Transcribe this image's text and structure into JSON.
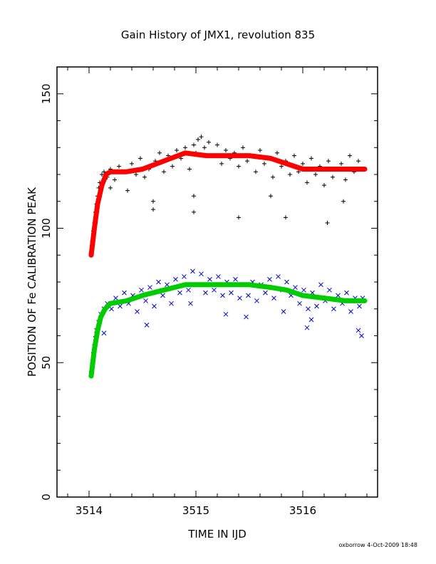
{
  "chart_data": {
    "type": "scatter",
    "title": "Gain History of JMX1, revolution 835",
    "xlabel": "TIME IN IJD",
    "ylabel": "POSITION OF Fe CALIBRATION PEAK",
    "xlim": [
      3513.7,
      3516.7
    ],
    "ylim": [
      0,
      160
    ],
    "x_ticks": [
      3514,
      3515,
      3516
    ],
    "x_tick_labels": [
      "3514",
      "3515",
      "3516"
    ],
    "y_ticks": [
      0,
      50,
      100,
      150
    ],
    "y_tick_labels": [
      "0",
      "50",
      "100",
      "150"
    ],
    "grid": false,
    "legend": "none",
    "series": [
      {
        "marker": "plus",
        "color": "#000000",
        "points": [
          [
            3514.02,
            91
          ],
          [
            3514.03,
            95
          ],
          [
            3514.04,
            99
          ],
          [
            3514.05,
            102
          ],
          [
            3514.06,
            106
          ],
          [
            3514.07,
            109
          ],
          [
            3514.08,
            112
          ],
          [
            3514.09,
            115
          ],
          [
            3514.1,
            117
          ],
          [
            3514.12,
            120
          ],
          [
            3514.14,
            121
          ],
          [
            3514.17,
            119
          ],
          [
            3514.2,
            122
          ],
          [
            3514.24,
            118
          ],
          [
            3514.28,
            123
          ],
          [
            3514.32,
            121
          ],
          [
            3514.36,
            114
          ],
          [
            3514.4,
            124
          ],
          [
            3514.44,
            120
          ],
          [
            3514.48,
            126
          ],
          [
            3514.52,
            119
          ],
          [
            3514.56,
            122
          ],
          [
            3514.6,
            110
          ],
          [
            3514.62,
            125
          ],
          [
            3514.66,
            128
          ],
          [
            3514.7,
            121
          ],
          [
            3514.74,
            127
          ],
          [
            3514.78,
            123
          ],
          [
            3514.82,
            129
          ],
          [
            3514.86,
            126
          ],
          [
            3514.9,
            130
          ],
          [
            3514.94,
            122
          ],
          [
            3514.98,
            131
          ],
          [
            3515.0,
            128
          ],
          [
            3515.02,
            133
          ],
          [
            3515.05,
            134
          ],
          [
            3515.08,
            130
          ],
          [
            3515.12,
            132
          ],
          [
            3515.16,
            127
          ],
          [
            3515.2,
            131
          ],
          [
            3515.24,
            124
          ],
          [
            3515.28,
            129
          ],
          [
            3515.32,
            126
          ],
          [
            3515.36,
            128
          ],
          [
            3515.4,
            123
          ],
          [
            3515.44,
            130
          ],
          [
            3515.48,
            125
          ],
          [
            3515.52,
            127
          ],
          [
            3515.56,
            121
          ],
          [
            3515.6,
            129
          ],
          [
            3515.64,
            124
          ],
          [
            3515.68,
            126
          ],
          [
            3515.72,
            119
          ],
          [
            3515.76,
            128
          ],
          [
            3515.8,
            123
          ],
          [
            3515.84,
            125
          ],
          [
            3515.88,
            120
          ],
          [
            3515.92,
            127
          ],
          [
            3515.96,
            121
          ],
          [
            3516.0,
            124
          ],
          [
            3516.04,
            117
          ],
          [
            3516.08,
            126
          ],
          [
            3516.12,
            120
          ],
          [
            3516.16,
            123
          ],
          [
            3516.2,
            116
          ],
          [
            3516.24,
            125
          ],
          [
            3516.28,
            119
          ],
          [
            3516.32,
            122
          ],
          [
            3516.36,
            124
          ],
          [
            3516.4,
            118
          ],
          [
            3516.44,
            127
          ],
          [
            3516.48,
            121
          ],
          [
            3516.52,
            125
          ],
          [
            3516.56,
            122
          ],
          [
            3514.6,
            107
          ],
          [
            3514.98,
            112
          ],
          [
            3514.98,
            106
          ],
          [
            3515.4,
            104
          ],
          [
            3515.84,
            104
          ],
          [
            3516.23,
            102
          ],
          [
            3516.38,
            110
          ],
          [
            3515.7,
            112
          ],
          [
            3514.2,
            115
          ]
        ]
      },
      {
        "marker": "cross",
        "color": "#0000cc",
        "points": [
          [
            3514.02,
            46
          ],
          [
            3514.03,
            49
          ],
          [
            3514.04,
            53
          ],
          [
            3514.05,
            56
          ],
          [
            3514.06,
            59
          ],
          [
            3514.07,
            62
          ],
          [
            3514.09,
            65
          ],
          [
            3514.11,
            68
          ],
          [
            3514.14,
            70
          ],
          [
            3514.17,
            72
          ],
          [
            3514.21,
            70
          ],
          [
            3514.25,
            74
          ],
          [
            3514.29,
            71
          ],
          [
            3514.33,
            76
          ],
          [
            3514.37,
            72
          ],
          [
            3514.41,
            75
          ],
          [
            3514.45,
            69
          ],
          [
            3514.49,
            77
          ],
          [
            3514.53,
            73
          ],
          [
            3514.57,
            78
          ],
          [
            3514.61,
            71
          ],
          [
            3514.65,
            80
          ],
          [
            3514.69,
            75
          ],
          [
            3514.73,
            79
          ],
          [
            3514.77,
            72
          ],
          [
            3514.81,
            81
          ],
          [
            3514.85,
            76
          ],
          [
            3514.89,
            82
          ],
          [
            3514.93,
            77
          ],
          [
            3514.97,
            84
          ],
          [
            3515.01,
            79
          ],
          [
            3515.05,
            83
          ],
          [
            3515.09,
            76
          ],
          [
            3515.13,
            81
          ],
          [
            3515.17,
            77
          ],
          [
            3515.21,
            82
          ],
          [
            3515.25,
            75
          ],
          [
            3515.29,
            80
          ],
          [
            3515.33,
            76
          ],
          [
            3515.37,
            81
          ],
          [
            3515.41,
            74
          ],
          [
            3515.45,
            79
          ],
          [
            3515.49,
            75
          ],
          [
            3515.53,
            80
          ],
          [
            3515.57,
            73
          ],
          [
            3515.61,
            79
          ],
          [
            3515.65,
            76
          ],
          [
            3515.69,
            81
          ],
          [
            3515.73,
            74
          ],
          [
            3515.77,
            82
          ],
          [
            3515.81,
            77
          ],
          [
            3515.85,
            80
          ],
          [
            3515.89,
            75
          ],
          [
            3515.93,
            78
          ],
          [
            3515.97,
            72
          ],
          [
            3516.01,
            77
          ],
          [
            3516.05,
            70
          ],
          [
            3516.09,
            76
          ],
          [
            3516.13,
            71
          ],
          [
            3516.17,
            79
          ],
          [
            3516.21,
            73
          ],
          [
            3516.25,
            77
          ],
          [
            3516.29,
            70
          ],
          [
            3516.33,
            75
          ],
          [
            3516.37,
            72
          ],
          [
            3516.41,
            76
          ],
          [
            3516.45,
            69
          ],
          [
            3516.49,
            74
          ],
          [
            3516.53,
            71
          ],
          [
            3516.56,
            74
          ],
          [
            3514.14,
            61
          ],
          [
            3514.54,
            64
          ],
          [
            3514.95,
            72
          ],
          [
            3515.28,
            68
          ],
          [
            3515.47,
            67
          ],
          [
            3516.04,
            63
          ],
          [
            3516.08,
            66
          ],
          [
            3516.52,
            62
          ],
          [
            3516.55,
            60
          ],
          [
            3515.82,
            69
          ]
        ]
      }
    ],
    "fits": [
      {
        "color": "#ff0000",
        "points": [
          [
            3514.02,
            90
          ],
          [
            3514.05,
            100
          ],
          [
            3514.08,
            109
          ],
          [
            3514.12,
            116
          ],
          [
            3514.16,
            120
          ],
          [
            3514.2,
            121
          ],
          [
            3514.35,
            121
          ],
          [
            3514.5,
            122
          ],
          [
            3514.7,
            125
          ],
          [
            3514.9,
            128
          ],
          [
            3515.1,
            127
          ],
          [
            3515.3,
            127
          ],
          [
            3515.5,
            127
          ],
          [
            3515.7,
            126
          ],
          [
            3515.85,
            124
          ],
          [
            3516.0,
            122
          ],
          [
            3516.2,
            122
          ],
          [
            3516.4,
            122
          ],
          [
            3516.58,
            122
          ]
        ]
      },
      {
        "color": "#00cc00",
        "points": [
          [
            3514.02,
            45
          ],
          [
            3514.05,
            55
          ],
          [
            3514.08,
            62
          ],
          [
            3514.11,
            67
          ],
          [
            3514.15,
            70
          ],
          [
            3514.2,
            72
          ],
          [
            3514.35,
            73
          ],
          [
            3514.5,
            75
          ],
          [
            3514.7,
            77
          ],
          [
            3514.9,
            79
          ],
          [
            3515.1,
            79
          ],
          [
            3515.3,
            79
          ],
          [
            3515.5,
            79
          ],
          [
            3515.7,
            78
          ],
          [
            3515.85,
            77
          ],
          [
            3516.0,
            75
          ],
          [
            3516.2,
            74
          ],
          [
            3516.4,
            73
          ],
          [
            3516.58,
            73
          ]
        ]
      }
    ]
  },
  "footer": {
    "stamp": "oxborrow   4-Oct-2009 18:48"
  }
}
